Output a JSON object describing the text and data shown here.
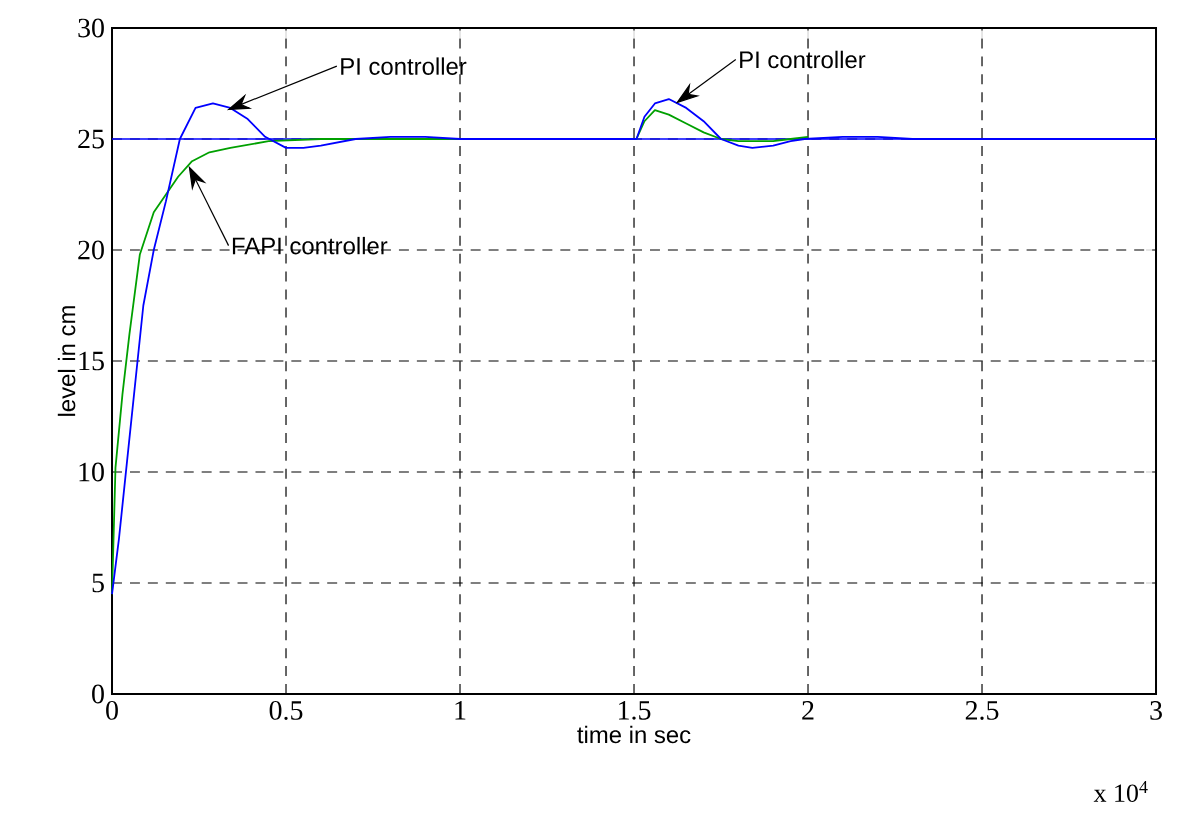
{
  "chart_data": {
    "type": "line",
    "xlabel": "time in sec",
    "ylabel": "level in cm",
    "series": [
      {
        "color": "#00a000",
        "x": [
          0,
          0.01,
          0.03,
          0.05,
          0.08,
          0.12,
          0.155,
          0.19,
          0.23,
          0.28,
          0.34,
          0.45,
          0.6,
          1.0,
          1.5,
          1.507,
          1.53,
          1.56,
          1.6,
          1.65,
          1.7,
          1.75,
          1.8,
          1.85,
          1.9,
          1.95,
          2.0
        ],
        "values": [
          4.5,
          10.2,
          13.5,
          16.2,
          19.8,
          21.7,
          22.5,
          23.3,
          24.0,
          24.4,
          24.6,
          24.9,
          25.0,
          25.0,
          25.0,
          25.0,
          25.8,
          26.3,
          26.1,
          25.7,
          25.3,
          25.0,
          24.9,
          24.9,
          24.9,
          25.0,
          25.1
        ]
      },
      {
        "color": "#0000ff",
        "x": [
          0,
          0.02,
          0.05,
          0.09,
          0.12,
          0.155,
          0.195,
          0.24,
          0.29,
          0.34,
          0.39,
          0.44,
          0.5,
          0.55,
          0.6,
          0.7,
          0.8,
          0.9,
          1.0,
          1.5,
          1.507,
          1.53,
          1.56,
          1.6,
          1.65,
          1.7,
          1.75,
          1.8,
          1.84,
          1.9,
          1.95,
          1.99,
          2.1,
          2.2,
          2.3,
          3.0
        ],
        "values": [
          4.5,
          7.0,
          11.5,
          17.5,
          20.0,
          22.2,
          25.0,
          26.4,
          26.6,
          26.4,
          25.9,
          25.1,
          24.6,
          24.6,
          24.7,
          25.0,
          25.1,
          25.1,
          25.0,
          25.0,
          25.0,
          26.0,
          26.6,
          26.8,
          26.4,
          25.8,
          25.0,
          24.7,
          24.6,
          24.7,
          24.9,
          25.0,
          25.1,
          25.1,
          25.0,
          25.0
        ]
      }
    ],
    "ref_lines": [
      {
        "axis": "y",
        "value": 25,
        "color": "#0000ff"
      }
    ],
    "annotations": [
      {
        "text": "PI controller",
        "x": 0.33,
        "y": 26.3
      },
      {
        "text": "FAPI controller",
        "x": 0.22,
        "y": 23.8
      },
      {
        "text": "PI controller",
        "x": 1.62,
        "y": 26.6
      },
      "x 10$^{4}$"
    ],
    "xlim": [
      0,
      3
    ],
    "ylim": [
      0,
      30
    ],
    "xticks": [
      0,
      0.5,
      1,
      1.5,
      2,
      2.5,
      3
    ],
    "yticks": [
      0,
      5,
      10,
      15,
      20,
      25,
      30
    ],
    "grid": true,
    "marker": "none",
    "line_style": "solid"
  }
}
